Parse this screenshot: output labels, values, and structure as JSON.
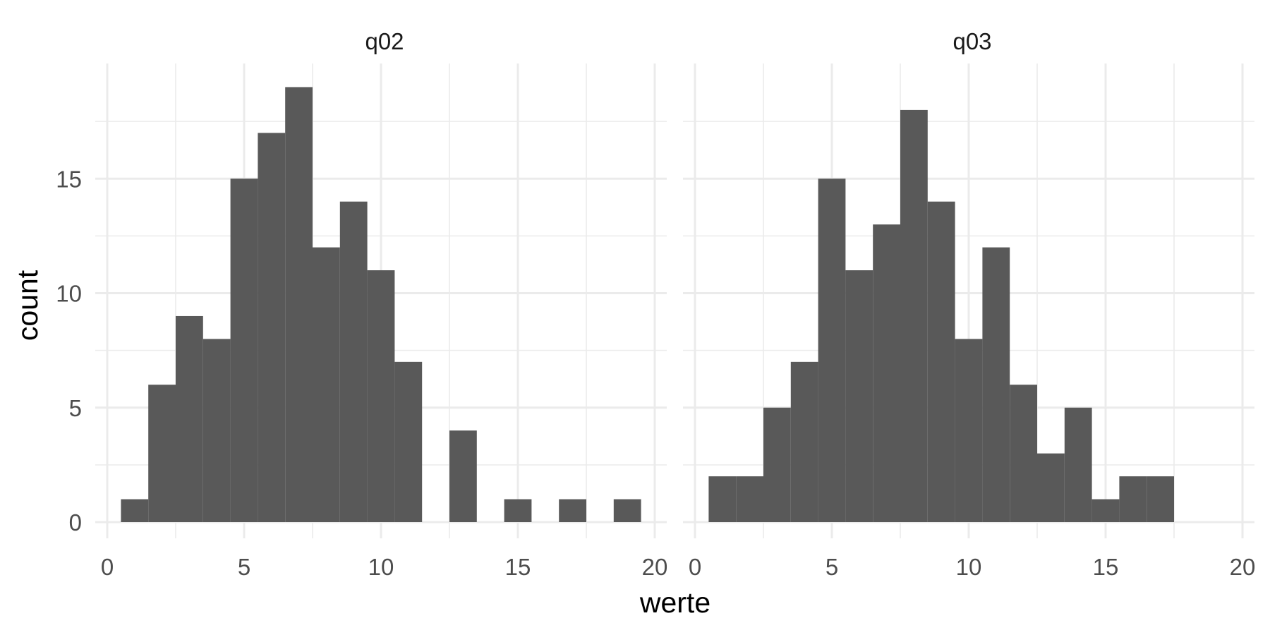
{
  "chart_data": {
    "type": "bar",
    "chart_kind": "faceted histogram",
    "xlabel": "werte",
    "ylabel": "count",
    "x_ticks": [
      "0",
      "5",
      "10",
      "15",
      "20"
    ],
    "y_ticks": [
      "0",
      "5",
      "10",
      "15"
    ],
    "xlim": [
      0,
      20
    ],
    "ylim": [
      0,
      19
    ],
    "bin_width": 1,
    "grid": true,
    "bar_color": "#595959",
    "grid_color": "#ebebeb",
    "facets": [
      {
        "label": "q02",
        "bins": [
          {
            "x": 1,
            "count": 1
          },
          {
            "x": 2,
            "count": 6
          },
          {
            "x": 3,
            "count": 9
          },
          {
            "x": 4,
            "count": 8
          },
          {
            "x": 5,
            "count": 15
          },
          {
            "x": 6,
            "count": 17
          },
          {
            "x": 7,
            "count": 19
          },
          {
            "x": 8,
            "count": 12
          },
          {
            "x": 9,
            "count": 14
          },
          {
            "x": 10,
            "count": 11
          },
          {
            "x": 11,
            "count": 7
          },
          {
            "x": 13,
            "count": 4
          },
          {
            "x": 15,
            "count": 1
          },
          {
            "x": 17,
            "count": 1
          },
          {
            "x": 19,
            "count": 1
          }
        ]
      },
      {
        "label": "q03",
        "bins": [
          {
            "x": 1,
            "count": 2
          },
          {
            "x": 2,
            "count": 2
          },
          {
            "x": 3,
            "count": 5
          },
          {
            "x": 4,
            "count": 7
          },
          {
            "x": 5,
            "count": 15
          },
          {
            "x": 6,
            "count": 11
          },
          {
            "x": 7,
            "count": 13
          },
          {
            "x": 8,
            "count": 18
          },
          {
            "x": 9,
            "count": 14
          },
          {
            "x": 10,
            "count": 8
          },
          {
            "x": 11,
            "count": 12
          },
          {
            "x": 12,
            "count": 6
          },
          {
            "x": 13,
            "count": 3
          },
          {
            "x": 14,
            "count": 5
          },
          {
            "x": 15,
            "count": 1
          },
          {
            "x": 16,
            "count": 2
          },
          {
            "x": 17,
            "count": 2
          }
        ]
      }
    ]
  }
}
